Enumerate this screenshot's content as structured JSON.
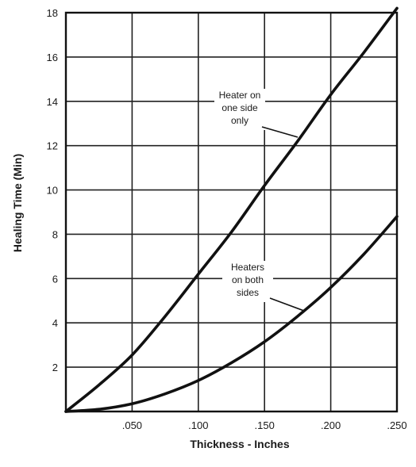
{
  "chart_data": {
    "type": "line",
    "xlabel": "Thickness - Inches",
    "ylabel": "Healing Time (Min)",
    "xlim": [
      0,
      0.25
    ],
    "ylim": [
      0,
      18
    ],
    "x_ticks": [
      ".050",
      ".100",
      ".150",
      ".200",
      ".250"
    ],
    "y_ticks": [
      "2",
      "4",
      "6",
      "8",
      "10",
      "12",
      "14",
      "16",
      "18"
    ],
    "grid": true,
    "series": [
      {
        "name": "Heater on one side only",
        "x": [
          0,
          0.025,
          0.05,
          0.075,
          0.1,
          0.125,
          0.15,
          0.175,
          0.2,
          0.225,
          0.25
        ],
        "y": [
          0.0,
          1.2,
          2.55,
          4.3,
          6.2,
          8.1,
          10.2,
          12.2,
          14.3,
          16.2,
          18.2
        ]
      },
      {
        "name": "Heaters on both sides",
        "x": [
          0,
          0.025,
          0.05,
          0.075,
          0.1,
          0.125,
          0.15,
          0.175,
          0.2,
          0.225,
          0.25
        ],
        "y": [
          0.0,
          0.1,
          0.35,
          0.8,
          1.4,
          2.2,
          3.15,
          4.3,
          5.6,
          7.1,
          8.8
        ]
      }
    ],
    "annotations": [
      {
        "lines": [
          "Heater on",
          "one side",
          "only"
        ],
        "series": 0
      },
      {
        "lines": [
          "Heaters",
          "on both",
          "sides"
        ],
        "series": 1
      }
    ]
  }
}
